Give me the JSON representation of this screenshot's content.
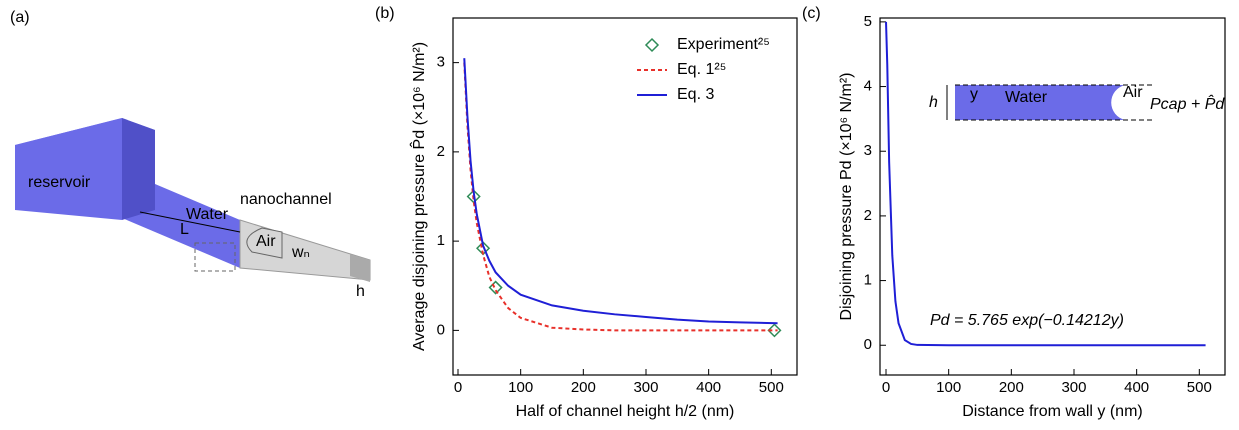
{
  "diagram": {
    "panel_label": "(a)",
    "reservoir": "reservoir",
    "nanochannel": "nanochannel",
    "water": "Water",
    "length": "L",
    "air": "Air",
    "width": "wₙ",
    "height": "h"
  },
  "chart_data": [
    {
      "type": "line",
      "panel_label": "(b)",
      "xlabel": "Half of channel height h/2 (nm)",
      "ylabel": "Average disjoining pressure P̂d (×10⁶ N/m²)",
      "xlim": [
        -8,
        541
      ],
      "ylim": [
        -0.5,
        3.5
      ],
      "xticks": [
        0,
        100,
        200,
        300,
        400,
        500
      ],
      "yticks": [
        0,
        1,
        2,
        3
      ],
      "legend": "upper right",
      "series": [
        {
          "name": "Experiment²⁵",
          "color": "#2e8b57",
          "style": "marker",
          "x": [
            25,
            40,
            60,
            505
          ],
          "values": [
            1.5,
            0.92,
            0.48,
            0.0
          ]
        },
        {
          "name": "Eq. 1²⁵",
          "color": "#e8302a",
          "style": "dotted",
          "x": [
            10,
            15,
            20,
            25,
            30,
            40,
            50,
            60,
            80,
            100,
            150,
            200,
            250,
            300,
            350,
            400,
            450,
            510
          ],
          "values": [
            3.0,
            2.3,
            1.8,
            1.45,
            1.2,
            0.85,
            0.6,
            0.45,
            0.25,
            0.14,
            0.03,
            0.01,
            0,
            0,
            0,
            0,
            0,
            0
          ]
        },
        {
          "name": "Eq. 3",
          "color": "#1f1fd6",
          "style": "solid",
          "x": [
            10,
            15,
            20,
            25,
            30,
            40,
            50,
            60,
            80,
            100,
            150,
            200,
            250,
            300,
            350,
            400,
            450,
            510
          ],
          "values": [
            3.05,
            2.4,
            1.9,
            1.55,
            1.3,
            0.95,
            0.78,
            0.65,
            0.5,
            0.4,
            0.28,
            0.22,
            0.18,
            0.15,
            0.12,
            0.1,
            0.09,
            0.08
          ]
        }
      ]
    },
    {
      "type": "line",
      "panel_label": "(c)",
      "xlabel": "Distance from wall y (nm)",
      "ylabel": "Disjoining pressure Pd (×10⁶ N/m²)",
      "xlim": [
        -9.6,
        541
      ],
      "ylim": [
        -0.46,
        5.06
      ],
      "xticks": [
        0,
        100,
        200,
        300,
        400,
        500
      ],
      "yticks": [
        0,
        1,
        2,
        3,
        4,
        5
      ],
      "annotation": "Pd = 5.765 exp(−0.14212y)",
      "inset": {
        "height": "h",
        "coord": "y",
        "water": "Water",
        "air": "Air",
        "pressure": "Pcap + P̂d"
      },
      "series": [
        {
          "color": "#1f1fd6",
          "style": "solid",
          "x": [
            0,
            2,
            5,
            10,
            15,
            20,
            30,
            40,
            50,
            100,
            200,
            300,
            400,
            510
          ],
          "values": [
            5.0,
            4.34,
            2.83,
            1.39,
            0.68,
            0.34,
            0.08,
            0.02,
            0.005,
            0,
            0,
            0,
            0,
            0
          ]
        }
      ]
    }
  ]
}
